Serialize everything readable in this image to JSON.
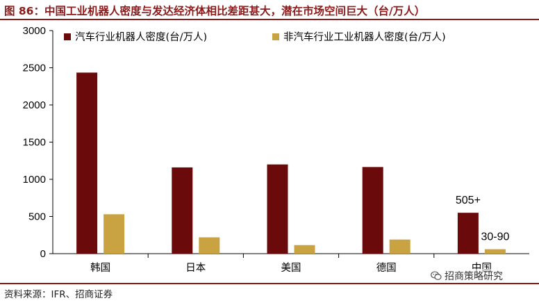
{
  "header": {
    "title": "图 86：中国工业机器人密度与发达经济体相比差距甚大，潜在市场空间巨大（台/万人）"
  },
  "footer": {
    "source": "资料来源：IFR、招商证券",
    "watermark": "招商策略研究",
    "watermark_icon": "wechat-icon"
  },
  "chart_data": {
    "type": "bar",
    "categories": [
      "韩国",
      "日本",
      "美国",
      "德国",
      "中国"
    ],
    "series": [
      {
        "name": "汽车行业机器人密度(台/万人)",
        "color": "#6b0a0a",
        "values": [
          2435,
          1160,
          1200,
          1165,
          550
        ]
      },
      {
        "name": "非汽车行业工业机器人密度(台/万人)",
        "color": "#c9a341",
        "values": [
          530,
          220,
          115,
          190,
          60
        ]
      }
    ],
    "ylim": [
      0,
      3000
    ],
    "yticks": [
      "0",
      "500",
      "1000",
      "1500",
      "2000",
      "2500",
      "3000"
    ],
    "ytick_values": [
      0,
      500,
      1000,
      1500,
      2000,
      2500,
      3000
    ],
    "grid": false,
    "legend_position": "top",
    "annotations": [
      {
        "text": "505+",
        "category": "中国",
        "series": 0
      },
      {
        "text": "30-90",
        "category": "中国",
        "series": 1
      }
    ],
    "xlabel": "",
    "ylabel": ""
  }
}
